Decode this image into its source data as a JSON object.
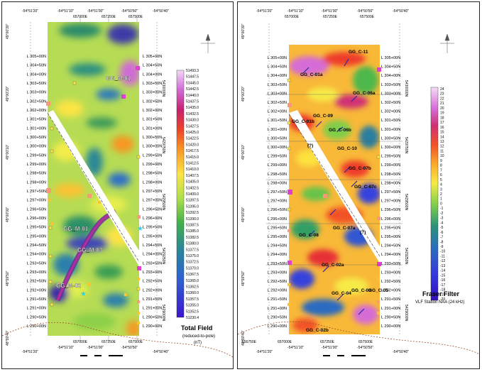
{
  "left_map": {
    "top_coords": [
      "-54°51'20\"",
      "-54°51'10\"",
      "-54°51'00\"",
      "-54°50'50\"",
      "-54°50'40\""
    ],
    "top_utm": [
      "657000E",
      "657250E",
      "657500E"
    ],
    "bottom_coords": [
      "-54°51'20\"",
      "-54°51'10\"",
      "-54°51'00\"",
      "-54°50'50\"",
      "-54°50'40\""
    ],
    "bottom_utm": [
      "657000E",
      "657250E",
      "657500E"
    ],
    "left_lat": [
      "49°00'30\"",
      "49°00'20\"",
      "49°00'10\"",
      "49°00'00\"",
      "48°59'50\"",
      "48°59'40\""
    ],
    "right_utm": [
      "5430000N",
      "5429750N",
      "5429500N",
      "5429250N",
      "5429000N"
    ],
    "line_labels_left": [
      "L 305+00N",
      "L 304+50N",
      "L 304+00N",
      "L 303+50N",
      "L 303+00N",
      "L 302+50N",
      "L 302+00N",
      "L 301+50N",
      "L 301+00N",
      "L 300+50N",
      "L 300+00N",
      "L 299+50N",
      "L 299+00N",
      "L 298+50N",
      "L 298+00N",
      "L 297+50N",
      "L 297+00N",
      "L 296+50N",
      "L 296+00N",
      "L 295+50N",
      "L 295+00N",
      "L 294+50N",
      "L 294+00N",
      "L 293+50N",
      "L 293+00N",
      "L 292+50N",
      "L 292+00N",
      "L 291+50N",
      "L 291+00N",
      "L 290+50N",
      "L 290+00N"
    ],
    "line_labels_right": [
      "L 305+00N",
      "L 304+50N",
      "L 304+00N",
      "L 303+50N",
      "L 303+00N",
      "L 302+50N",
      "L 302+00N",
      "L 301+50N",
      "L 301+00N",
      "L 300+50N",
      "L 300+00N",
      "L 299+50N",
      "L 299+00N",
      "L 298+50N",
      "L 298+00N",
      "L 297+50N",
      "L 297+00N",
      "L 296+50N",
      "L 296+00N",
      "L 295+50N",
      "L 295+00N",
      "L 294+50N",
      "L 294+00N",
      "L 293+50N",
      "L 293+00N",
      "L 292+50N",
      "L 292+00N",
      "L 291+50N",
      "L 291+00N",
      "L 290+50N",
      "L 290+00N"
    ],
    "anomalies": [
      "GG_M-01",
      "GG_M-01",
      "GG_M-03",
      "GG_M-02"
    ],
    "legend": {
      "values": [
        "51493.3",
        "51447.5",
        "51445.0",
        "51442.5",
        "51440.0",
        "51437.5",
        "51435.0",
        "51432.5",
        "51430.0",
        "51427.5",
        "51425.0",
        "51422.5",
        "51420.0",
        "51417.5",
        "51415.0",
        "51412.5",
        "51410.0",
        "51407.5",
        "51405.0",
        "51402.5",
        "51400.0",
        "51397.5",
        "51395.0",
        "51392.5",
        "51390.0",
        "51387.5",
        "51385.0",
        "51382.5",
        "51380.0",
        "51377.5",
        "51375.0",
        "51372.5",
        "51370.0",
        "51367.5",
        "51365.0",
        "51362.5",
        "51360.0",
        "51357.5",
        "51355.0",
        "51352.5",
        "51230.4"
      ],
      "colors": [
        "#f4d8f4",
        "#e8b4ea",
        "#dc8fe0",
        "#d06ad6",
        "#c448cc",
        "#c02c9a",
        "#c82070",
        "#d8244a",
        "#e63030",
        "#ee4428",
        "#f25e24",
        "#f67a22",
        "#f89624",
        "#faae2a",
        "#fcc232",
        "#fdd43a",
        "#fde444",
        "#f4ec4c",
        "#e0ee4e",
        "#c8ea4e",
        "#acdf4c",
        "#90d44a",
        "#74c848",
        "#5abc48",
        "#40b04a",
        "#2ea454",
        "#2a9a68",
        "#2a9080",
        "#2a8896",
        "#2a80aa",
        "#2a78bc",
        "#2c6ec8",
        "#2e64d0",
        "#305ad6",
        "#3250da",
        "#3446dc",
        "#363cde",
        "#3832de",
        "#3a28dc",
        "#3c1ed8",
        "#3e14d2"
      ],
      "title": "Total Field",
      "subtitle": "(reduced-to-pole)",
      "unit": "(nT)"
    }
  },
  "right_map": {
    "top_coords": [
      "-54°51'20\"",
      "-54°51'10\"",
      "-54°51'00\"",
      "-54°50'50\"",
      "-54°50'40\""
    ],
    "top_utm": [
      "657000E",
      "657250E",
      "657500E"
    ],
    "bottom_coords": [
      "-54°51'20\"",
      "-54°51'10\"",
      "-54°51'00\"",
      "-54°50'50\"",
      "-54°50'40\""
    ],
    "bottom_utm": [
      "656750E",
      "657000E",
      "657250E",
      "657500E"
    ],
    "left_lat": [
      "49°00'30\"",
      "49°00'20\"",
      "49°00'10\"",
      "49°00'00\"",
      "48°59'50\"",
      "48°59'40\""
    ],
    "right_utm": [
      "5430000N",
      "5429750N",
      "5429500N",
      "5429250N",
      "5429000N"
    ],
    "anomalies": [
      "GG_C-11",
      "GG_C-01a",
      "GG_C-06a",
      "GG_C-09",
      "GG_C-01b",
      "GG_C-06b",
      "GG_C-10",
      "GG_C-07b",
      "GG_C-07c",
      "GG_C-07a",
      "GG_C-08",
      "GG_C-02a",
      "GG_C-02b",
      "GG_C-04",
      "GG_C-03",
      "GG_C-05",
      "(?)",
      "(?)"
    ],
    "legend": {
      "values": [
        "24",
        "23",
        "22",
        "21",
        "20",
        "19",
        "18",
        "17",
        "16",
        "15",
        "14",
        "13",
        "12",
        "11",
        "10",
        "9",
        "8",
        "7",
        "6",
        "5",
        "4",
        "3",
        "2",
        "1",
        "0",
        "-1",
        "-2",
        "-3",
        "-4",
        "-5",
        "-6",
        "-7",
        "-8",
        "-9",
        "-10",
        "-11",
        "-12",
        "-13",
        "-14",
        "-15",
        "-16",
        "-17",
        "-18",
        "-19",
        "-20"
      ],
      "colors": [
        "#f6dcf6",
        "#eec0ee",
        "#e6a4e6",
        "#de88de",
        "#d66cd6",
        "#cc50c8",
        "#c83c9c",
        "#d03074",
        "#dc2e50",
        "#e63036",
        "#ee3e2a",
        "#f25226",
        "#f66824",
        "#f87e24",
        "#fa9426",
        "#fbaa2a",
        "#fcbe30",
        "#fdd236",
        "#fde23e",
        "#f6ea46",
        "#e6ee4a",
        "#d0ea4c",
        "#b6e24c",
        "#9cd84a",
        "#80ce4a",
        "#66c44a",
        "#4eb84c",
        "#3cac56",
        "#30a066",
        "#2c9478",
        "#2a888c",
        "#2a7e9e",
        "#2a74b0",
        "#2c6ac0",
        "#2e60ca",
        "#3056d2",
        "#324cd8",
        "#3442dc",
        "#3638de",
        "#382ede",
        "#3a24dc",
        "#3c1ad8",
        "#3e14d2",
        "#3a12c8",
        "#3410bc"
      ],
      "title": "Fraser Filter",
      "subtitle": "VLF Station NAA (24 kHz)"
    }
  }
}
